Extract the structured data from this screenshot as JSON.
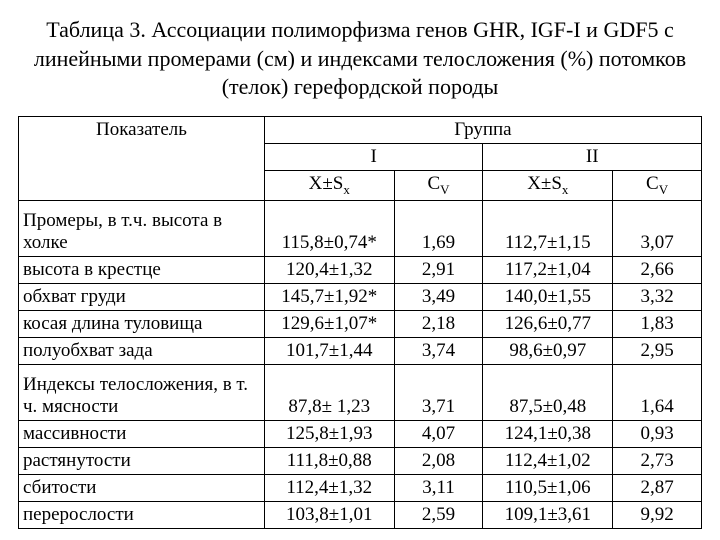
{
  "caption": "Таблица 3. Ассоциации полиморфизма генов GHR, IGF-I и GDF5 с линейными промерами (см)  и индексами телосложения (%)  потомков (телок) герефордской породы",
  "headers": {
    "indicator": "Показатель",
    "group": "Группа",
    "g1": "I",
    "g2": "II",
    "xsx_plain": "X±S",
    "xsx_sub": "x",
    "cv_plain": "C",
    "cv_sub": "V"
  },
  "rows": [
    {
      "label": "Промеры, в т.ч. высота в холке",
      "tall": true,
      "g1_x": "115,8±0,74*",
      "g1_c": "1,69",
      "g2_x": "112,7±1,15",
      "g2_c": "3,07"
    },
    {
      "label": "высота в крестце",
      "g1_x": "120,4±1,32",
      "g1_c": "2,91",
      "g2_x": "117,2±1,04",
      "g2_c": "2,66"
    },
    {
      "label": "обхват груди",
      "g1_x": "145,7±1,92*",
      "g1_c": "3,49",
      "g2_x": "140,0±1,55",
      "g2_c": "3,32"
    },
    {
      "label": "косая длина туловища",
      "g1_x": "129,6±1,07*",
      "g1_c": "2,18",
      "g2_x": "126,6±0,77",
      "g2_c": "1,83"
    },
    {
      "label": "полуобхват зада",
      "g1_x": "101,7±1,44",
      "g1_c": "3,74",
      "g2_x": "98,6±0,97",
      "g2_c": "2,95"
    },
    {
      "label": "Индексы телосложения, в т. ч.  мясности",
      "tall": true,
      "g1_x": "87,8± 1,23",
      "g1_c": "3,71",
      "g2_x": "87,5±0,48",
      "g2_c": "1,64"
    },
    {
      "label": "массивности",
      "g1_x": "125,8±1,93",
      "g1_c": "4,07",
      "g2_x": "124,1±0,38",
      "g2_c": "0,93"
    },
    {
      "label": "растянутости",
      "g1_x": "111,8±0,88",
      "g1_c": "2,08",
      "g2_x": "112,4±1,02",
      "g2_c": "2,73"
    },
    {
      "label": "сбитости",
      "g1_x": "112,4±1,32",
      "g1_c": "3,11",
      "g2_x": "110,5±1,06",
      "g2_c": "2,87"
    },
    {
      "label": "перерослости",
      "g1_x": "103,8±1,01",
      "g1_c": "2,59",
      "g2_x": "109,1±3,61",
      "g2_c": "9,92"
    }
  ],
  "colwidths": {
    "label": "36%",
    "g1x": "19%",
    "g1c": "13%",
    "g2x": "19%",
    "g2c": "13%"
  }
}
